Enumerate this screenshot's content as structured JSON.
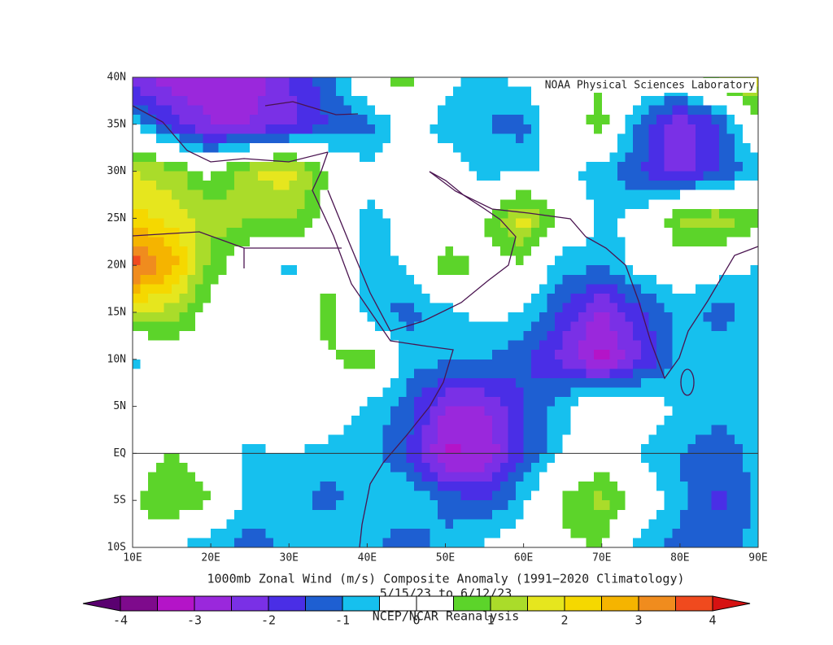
{
  "chart_data": {
    "type": "contour",
    "title": "1000mb Zonal Wind (m/s) Composite Anomaly (1991−2020 Climatology)",
    "subtitle": "5/15/23  to 6/12/23",
    "source": "NCEP/NCAR Reanalysis",
    "credit": "NOAA Physical Sciences Laboratory",
    "xlim": [
      10,
      90
    ],
    "ylim": [
      -10,
      40
    ],
    "xticks": [
      {
        "value": 10,
        "label": "10E"
      },
      {
        "value": 20,
        "label": "20E"
      },
      {
        "value": 30,
        "label": "30E"
      },
      {
        "value": 40,
        "label": "40E"
      },
      {
        "value": 50,
        "label": "50E"
      },
      {
        "value": 60,
        "label": "60E"
      },
      {
        "value": 70,
        "label": "70E"
      },
      {
        "value": 80,
        "label": "80E"
      },
      {
        "value": 90,
        "label": "90E"
      }
    ],
    "yticks": [
      {
        "value": 40,
        "label": "40N"
      },
      {
        "value": 35,
        "label": "35N"
      },
      {
        "value": 30,
        "label": "30N"
      },
      {
        "value": 25,
        "label": "25N"
      },
      {
        "value": 20,
        "label": "20N"
      },
      {
        "value": 15,
        "label": "15N"
      },
      {
        "value": 10,
        "label": "10N"
      },
      {
        "value": 5,
        "label": "5N"
      },
      {
        "value": 0,
        "label": "EQ"
      },
      {
        "value": -5,
        "label": "5S"
      },
      {
        "value": -10,
        "label": "10S"
      }
    ],
    "x": [
      10,
      15,
      20,
      25,
      30,
      35,
      40,
      45,
      50,
      55,
      60,
      65,
      70,
      75,
      80,
      85,
      90
    ],
    "y": [
      40,
      35,
      30,
      25,
      20,
      15,
      10,
      5,
      0,
      -5,
      -10
    ],
    "values": [
      [
        -2.5,
        -2.8,
        -3,
        -2.8,
        -2,
        -1.2,
        0.3,
        0.8,
        -0.3,
        -0.7,
        -0.3,
        0,
        0.5,
        0.2,
        0,
        1.2,
        1.8
      ],
      [
        -0.5,
        -1.8,
        -2.5,
        -2.5,
        -2.2,
        -1.5,
        -1.2,
        -0.2,
        -0.7,
        -1,
        -1.2,
        0.2,
        0.7,
        -1.2,
        -2.5,
        -1.5,
        0.3
      ],
      [
        1.5,
        1.2,
        0.3,
        1.5,
        1.8,
        0.5,
        -0.3,
        0,
        -0.2,
        -0.7,
        -0.6,
        -0.4,
        -0.8,
        -1.5,
        -2.2,
        -1.5,
        -0.8
      ],
      [
        2.2,
        1.8,
        1.3,
        1,
        1.2,
        0.2,
        -0.7,
        -0.3,
        -0.5,
        0.5,
        1.8,
        0.3,
        -0.6,
        -0.3,
        1.2,
        1.3,
        0.8
      ],
      [
        3.8,
        2.8,
        0.8,
        0,
        -0.7,
        0.3,
        -0.8,
        -0.4,
        1,
        0.3,
        0.4,
        -0.8,
        -0.9,
        -0.3,
        0,
        -0.2,
        -0.5
      ],
      [
        1.5,
        1.3,
        0.2,
        0,
        -0.2,
        0.8,
        -0.8,
        -1.2,
        -0.7,
        -0.3,
        -0.5,
        -1.6,
        -2.6,
        -1.6,
        -0.8,
        -1.2,
        -0.8
      ],
      [
        -0.7,
        0,
        0,
        -0.4,
        0,
        0.4,
        0.9,
        -0.7,
        -0.9,
        -1,
        -1.4,
        -2.2,
        -3.3,
        -2,
        -0.9,
        -0.7,
        -0.8
      ],
      [
        0,
        0,
        0,
        0.6,
        0.2,
        0,
        -0.6,
        -1.2,
        -2.5,
        -2.5,
        -1.5,
        -0.7,
        0.6,
        0,
        -0.6,
        -0.7,
        -0.8
      ],
      [
        0.3,
        0.5,
        0,
        -0.7,
        -0.5,
        -0.7,
        -0.8,
        -1.5,
        -3.1,
        -3,
        -1.5,
        -0.5,
        0,
        -0.6,
        -1,
        -1.4,
        -0.8
      ],
      [
        0.3,
        1.1,
        0.6,
        -0.7,
        -0.8,
        -1.2,
        -0.7,
        -0.5,
        -1.2,
        -1.6,
        -0.6,
        0.6,
        1.2,
        0,
        -0.9,
        -1.6,
        -0.8
      ],
      [
        0.6,
        -0.5,
        -0.9,
        -1.3,
        -0.8,
        -0.4,
        -0.8,
        -1.4,
        -0.8,
        -0.4,
        0,
        0.4,
        0.5,
        -0.7,
        -1.2,
        -1.4,
        -0.8
      ]
    ],
    "colorbar": {
      "levels": [
        -4,
        -3.5,
        -3,
        -2.5,
        -2,
        -1.5,
        -1,
        -0.5,
        0,
        0.5,
        1,
        1.5,
        2,
        2.5,
        3,
        3.5,
        4
      ],
      "colors": [
        "#5a0070",
        "#7e0a8c",
        "#b414c8",
        "#9a28dc",
        "#7a30e6",
        "#4a2ee6",
        "#1e5fd2",
        "#16c0ee",
        "#ffffff",
        "#ffffff",
        "#5cd42a",
        "#aadc2a",
        "#e6e61e",
        "#f5d800",
        "#f5b400",
        "#f08c1e",
        "#f04a1e",
        "#d61212"
      ],
      "ticks": [
        -4,
        -3,
        -2,
        -1,
        0,
        1,
        2,
        3,
        4
      ]
    }
  }
}
